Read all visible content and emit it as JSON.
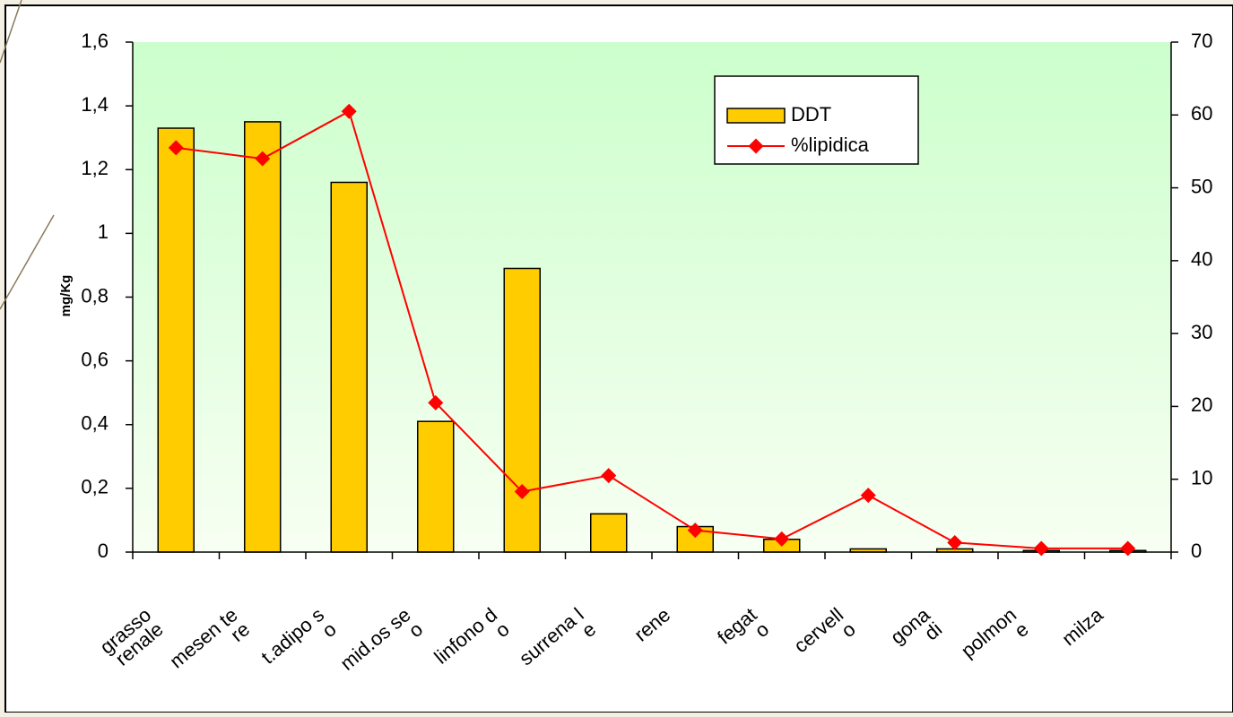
{
  "chart_data": {
    "type": "bar+line",
    "categories": [
      [
        "grasso",
        "renale"
      ],
      [
        "mesen te",
        "re"
      ],
      [
        "t.adipo s",
        "o"
      ],
      [
        "mid.os se",
        "o"
      ],
      [
        "linfono d",
        "o"
      ],
      [
        "surrena l",
        "e"
      ],
      [
        "rene"
      ],
      [
        "fegat",
        "o"
      ],
      [
        "cervell",
        "o"
      ],
      [
        "gona",
        "di"
      ],
      [
        "polmon",
        "e"
      ],
      [
        "milza"
      ]
    ],
    "series": [
      {
        "name": "DDT",
        "type": "bar",
        "axis": "left",
        "color": "#ffcc00",
        "values": [
          1.33,
          1.35,
          1.16,
          0.41,
          0.89,
          0.12,
          0.08,
          0.04,
          0.01,
          0.01,
          0.005,
          0.005
        ]
      },
      {
        "name": "%lipidica",
        "type": "line",
        "axis": "right",
        "color": "#ff0000",
        "values": [
          55.5,
          54,
          60.5,
          20.5,
          8.3,
          10.5,
          3,
          1.8,
          7.8,
          1.3,
          0.5,
          0.5
        ]
      }
    ],
    "ylabel": "mg/Kg",
    "y_left": {
      "range": [
        0,
        1.6
      ],
      "ticks": [
        "0",
        "0,2",
        "0,4",
        "0,6",
        "0,8",
        "1",
        "1,2",
        "1,4",
        "1,6"
      ]
    },
    "y_right": {
      "range": [
        0,
        70
      ],
      "ticks": [
        "0",
        "10",
        "20",
        "30",
        "40",
        "50",
        "60",
        "70"
      ]
    },
    "legend": {
      "position": "top-right",
      "entries": [
        "DDT",
        "%lipidica"
      ]
    },
    "plot_background": [
      "#ccffcc",
      "#f7fff2"
    ]
  }
}
